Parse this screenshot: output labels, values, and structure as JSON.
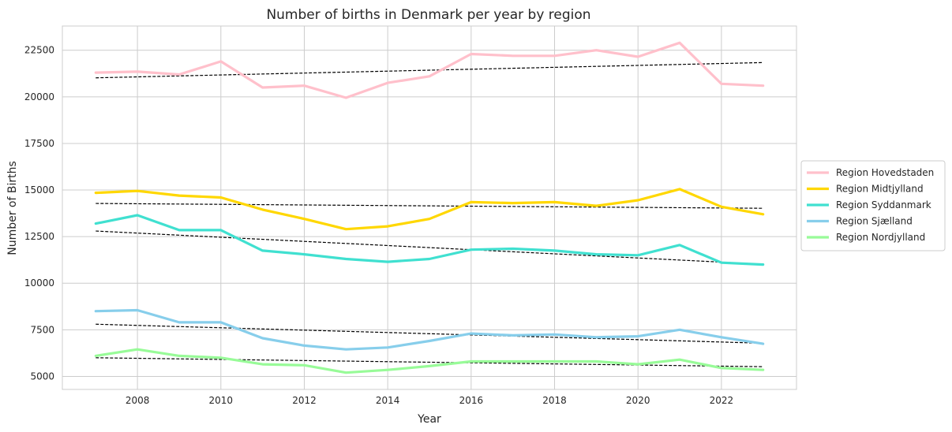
{
  "chart_data": {
    "type": "line",
    "title": "Number of births in Denmark per year by region",
    "xlabel": "Year",
    "ylabel": "Number of Births",
    "xlim": [
      2006.2,
      2023.8
    ],
    "ylim": [
      4300,
      23800
    ],
    "xticks": [
      2008,
      2010,
      2012,
      2014,
      2016,
      2018,
      2020,
      2022
    ],
    "yticks": [
      5000,
      7500,
      10000,
      12500,
      15000,
      17500,
      20000,
      22500
    ],
    "grid": true,
    "legend_position": "center-right-outside",
    "trend_line_color": "#000000",
    "x": [
      2007,
      2008,
      2009,
      2010,
      2011,
      2012,
      2013,
      2014,
      2015,
      2016,
      2017,
      2018,
      2019,
      2020,
      2021,
      2022,
      2023
    ],
    "series": [
      {
        "name": "Region Hovedstaden",
        "color": "#ffc0cb",
        "values": [
          21300,
          21350,
          21200,
          21900,
          20500,
          20600,
          19950,
          20750,
          21100,
          22300,
          22200,
          22200,
          22500,
          22150,
          22900,
          20700,
          20600
        ],
        "trend": [
          21020,
          21840
        ]
      },
      {
        "name": "Region Midtjylland",
        "color": "#ffd700",
        "values": [
          14850,
          14950,
          14700,
          14600,
          13950,
          13450,
          12900,
          13050,
          13450,
          14350,
          14300,
          14350,
          14150,
          14450,
          15050,
          14100,
          13700
        ],
        "trend": [
          14280,
          14020
        ]
      },
      {
        "name": "Region Syddanmark",
        "color": "#40e0d0",
        "values": [
          13200,
          13650,
          12850,
          12850,
          11750,
          11550,
          11300,
          11150,
          11300,
          11800,
          11850,
          11750,
          11550,
          11500,
          12050,
          11100,
          11000
        ],
        "trend": [
          12800,
          11020
        ]
      },
      {
        "name": "Region Sjælland",
        "color": "#87ceeb",
        "values": [
          8500,
          8550,
          7900,
          7900,
          7050,
          6650,
          6450,
          6550,
          6900,
          7300,
          7200,
          7250,
          7100,
          7150,
          7500,
          7100,
          6750
        ],
        "trend": [
          7800,
          6780
        ]
      },
      {
        "name": "Region Nordjylland",
        "color": "#98fb98",
        "values": [
          6100,
          6450,
          6100,
          6000,
          5650,
          5600,
          5200,
          5350,
          5550,
          5800,
          5800,
          5800,
          5800,
          5650,
          5900,
          5450,
          5350
        ],
        "trend": [
          6000,
          5520
        ]
      }
    ]
  }
}
